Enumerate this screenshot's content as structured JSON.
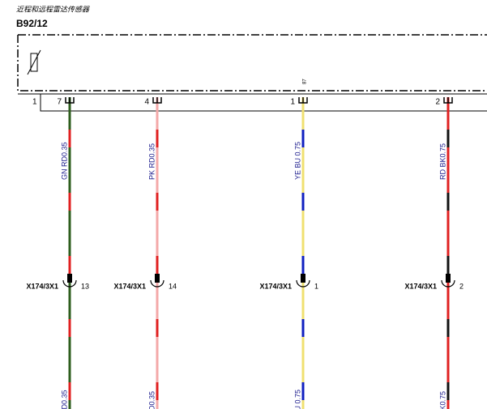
{
  "header": {
    "title": "近程和远程雷达传感器",
    "component": "B92/12"
  },
  "box": {
    "pin": "1"
  },
  "wires": [
    {
      "pin": "7",
      "label": "GN RD0.35",
      "connector": "X174/3X1",
      "connector_pin": "13"
    },
    {
      "pin": "4",
      "label": "PK RD0.35",
      "connector": "X174/3X1",
      "connector_pin": "14"
    },
    {
      "pin": "1",
      "pin_note": "87",
      "label": "YE BU 0.75",
      "connector": "X174/3X1",
      "connector_pin": "1"
    },
    {
      "pin": "2",
      "label": "RD BK0.75",
      "connector": "X174/3X1",
      "connector_pin": "2"
    }
  ]
}
